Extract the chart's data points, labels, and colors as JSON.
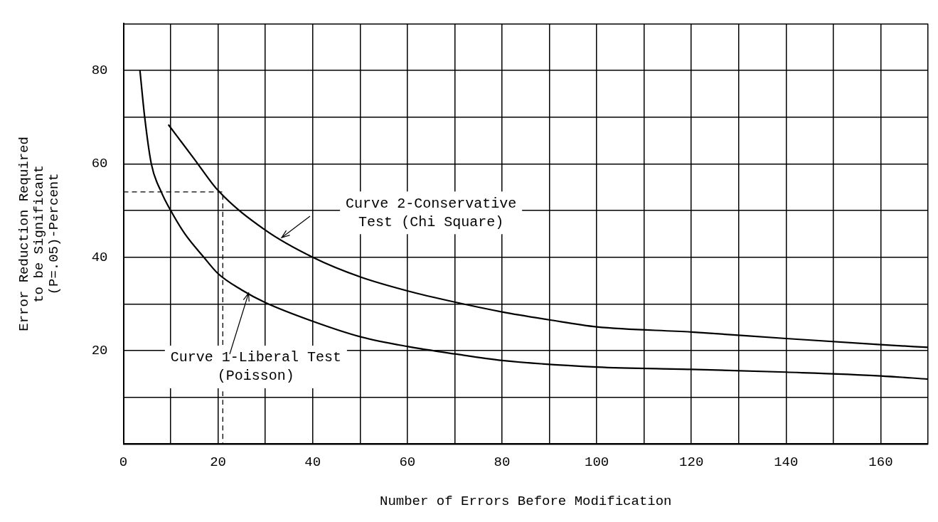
{
  "chart_data": {
    "type": "line",
    "xlabel": "Number of Errors Before Modification",
    "ylabel": "Error Reduction Required to be Significant (P=.05)-Percent",
    "xlim": [
      0,
      170
    ],
    "ylim": [
      0,
      90
    ],
    "xticks": [
      0,
      {
        "value": 10,
        "label": null
      },
      20,
      {
        "value": 30,
        "label": null
      },
      40,
      {
        "value": 50,
        "label": null
      },
      60,
      {
        "value": 70,
        "label": null
      },
      80,
      {
        "value": 90,
        "label": null
      },
      100,
      {
        "value": 110,
        "label": null
      },
      120,
      {
        "value": 130,
        "label": null
      },
      140,
      {
        "value": 150,
        "label": null
      },
      160,
      {
        "value": 170,
        "label": null
      }
    ],
    "yticks": [
      {
        "value": 0,
        "label": null
      },
      {
        "value": 10,
        "label": null
      },
      20,
      {
        "value": 30,
        "label": null
      },
      40,
      {
        "value": 50,
        "label": null
      },
      60,
      {
        "value": 70,
        "label": null
      },
      80,
      {
        "value": 90,
        "label": null
      }
    ],
    "grid": true,
    "legend": false,
    "marker": "none",
    "series": [
      {
        "name": "Curve 1-Liberal Test (Poisson)",
        "color": "#000000",
        "x": [
          3.5,
          4.5,
          5.9,
          8,
          10,
          13,
          17,
          20,
          25,
          30,
          40,
          50,
          60,
          70,
          80,
          100,
          120,
          140,
          160,
          170
        ],
        "values": [
          80,
          70,
          60,
          54,
          50,
          45,
          40,
          36.5,
          33,
          30.3,
          26.3,
          23,
          20.9,
          19.3,
          17.9,
          16.5,
          16,
          15.4,
          14.6,
          13.9
        ]
      },
      {
        "name": "Curve 2-Conservative Test (Chi Square)",
        "color": "#000000",
        "x": [
          9.5,
          15,
          20,
          30,
          40,
          50,
          60,
          70,
          80,
          90,
          100,
          120,
          140,
          160,
          170
        ],
        "values": [
          68.4,
          61,
          54.3,
          45.8,
          40,
          35.8,
          32.8,
          30.4,
          28.3,
          26.6,
          25.1,
          24,
          22.6,
          21.3,
          20.7
        ]
      },
      {
        "color": "#000000",
        "line_style": "dashed",
        "x": [
          0,
          21,
          21
        ],
        "values": [
          54,
          54,
          0
        ]
      }
    ]
  }
}
